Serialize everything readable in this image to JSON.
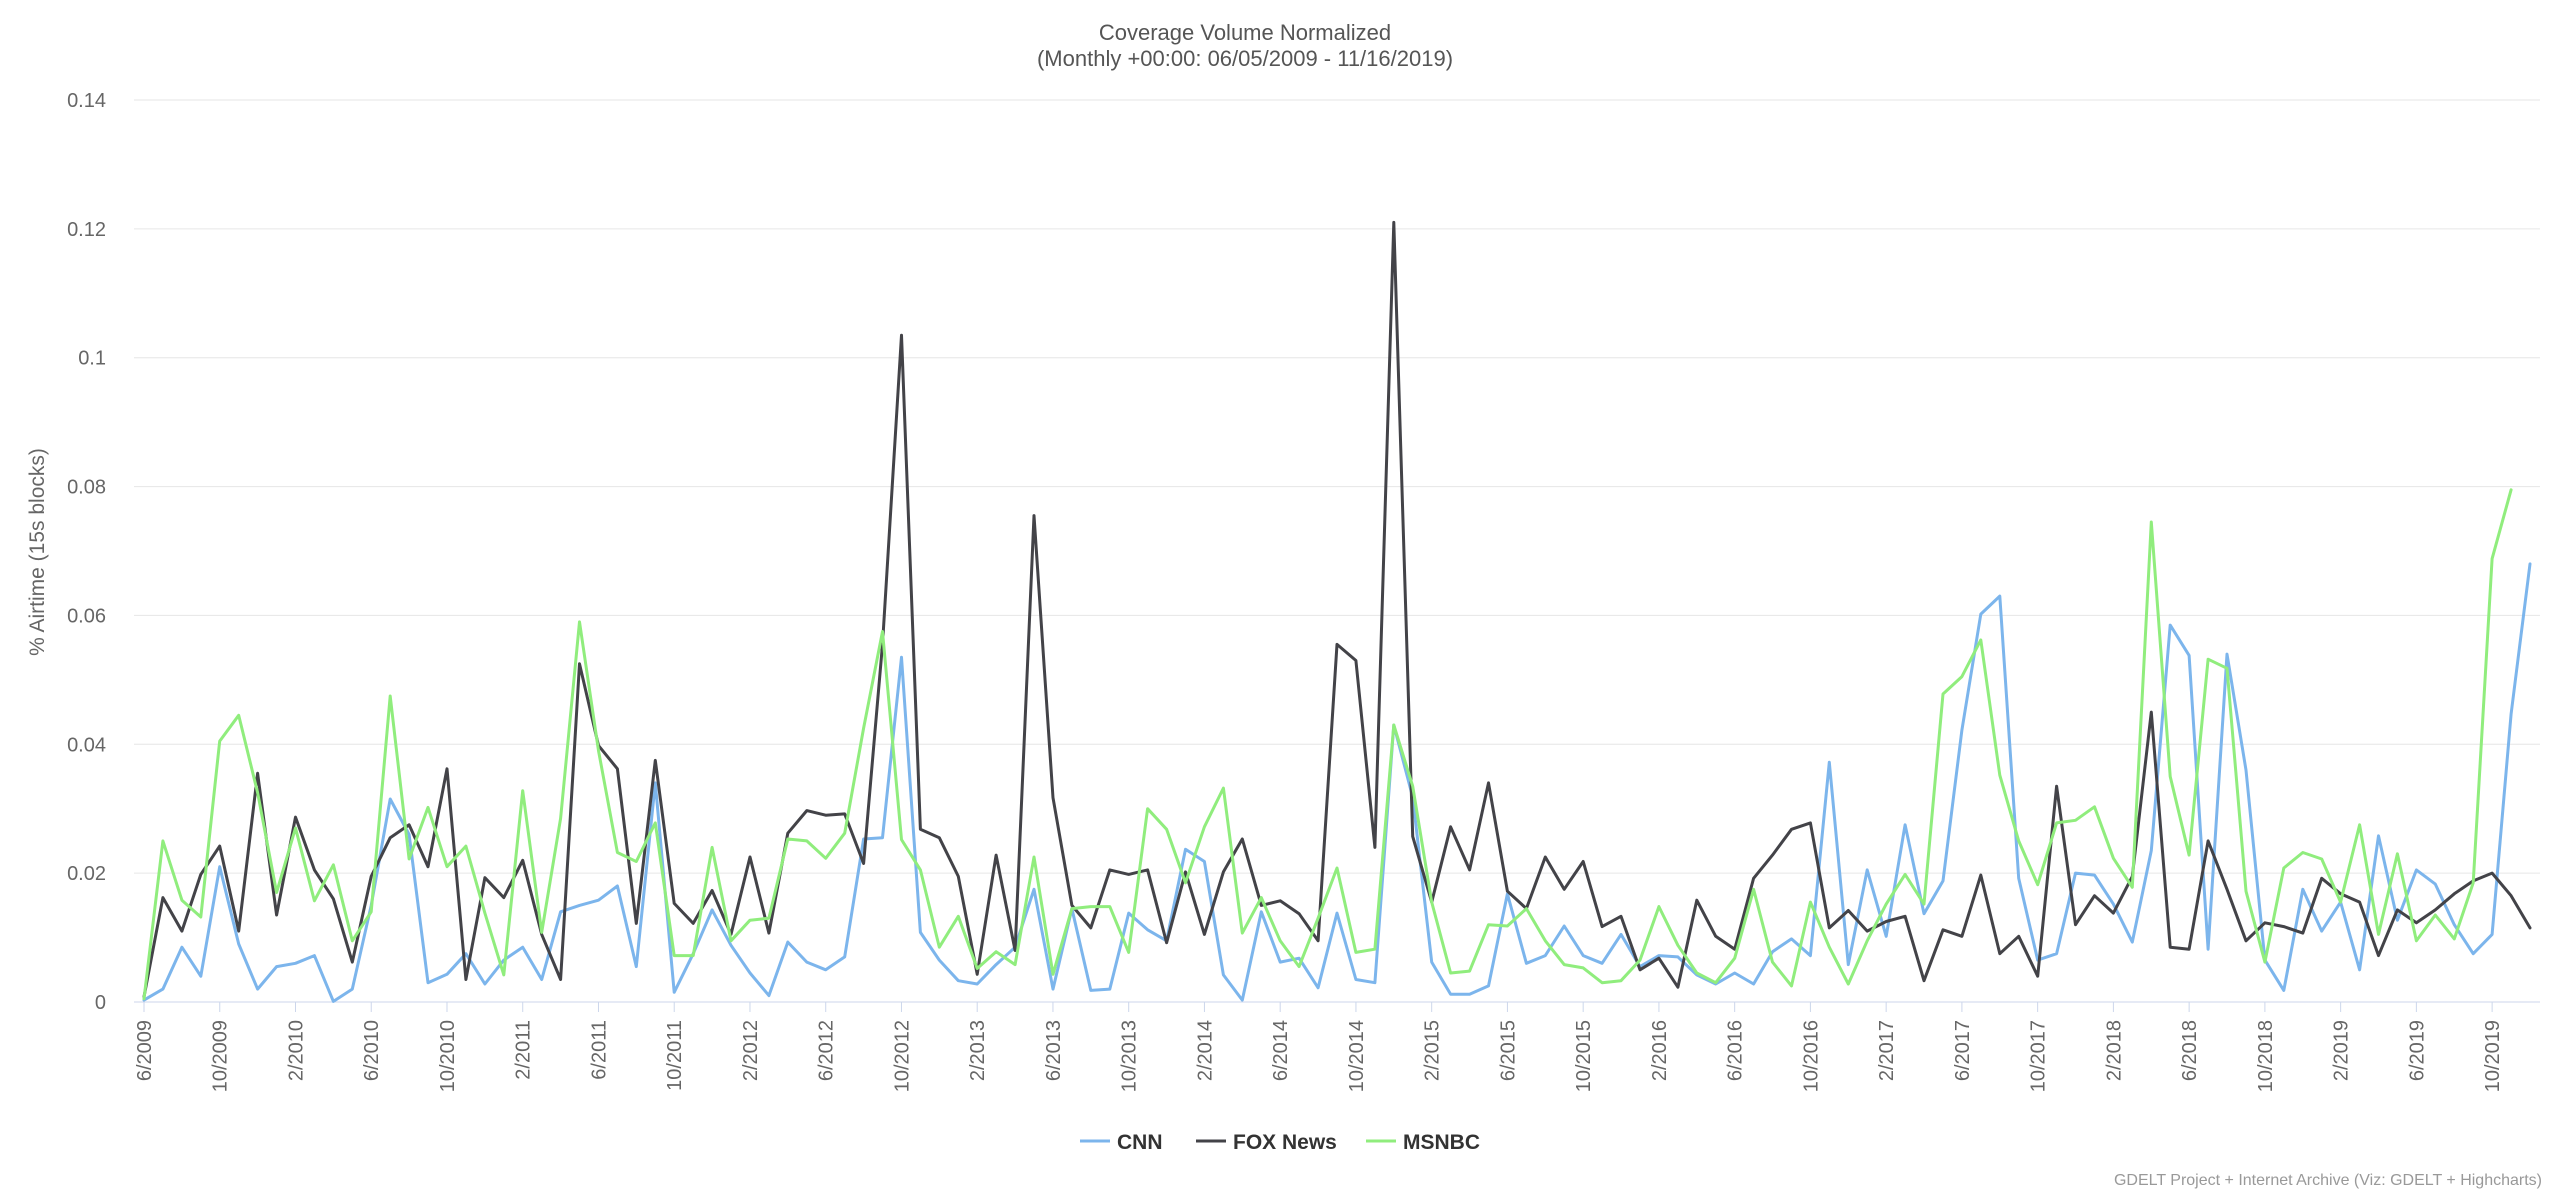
{
  "chart_data": {
    "type": "line",
    "title": "Coverage Volume Normalized",
    "subtitle": "(Monthly +00:00: 06/05/2009 - 11/16/2019)",
    "xlabel": "",
    "ylabel": "% Airtime (15s blocks)",
    "ylim": [
      0,
      0.14
    ],
    "yticks": [
      "0",
      "0.02",
      "0.04",
      "0.06",
      "0.08",
      "0.1",
      "0.12",
      "0.14"
    ],
    "grid": true,
    "legend_position": "bottom",
    "x_start": "6/2009",
    "x_end": "11/2019",
    "xtick_labels": [
      "6/2009",
      "10/2009",
      "2/2010",
      "6/2010",
      "10/2010",
      "2/2011",
      "6/2011",
      "10/2011",
      "2/2012",
      "6/2012",
      "10/2012",
      "2/2013",
      "6/2013",
      "10/2013",
      "2/2014",
      "6/2014",
      "10/2014",
      "2/2015",
      "6/2015",
      "10/2015",
      "2/2016",
      "6/2016",
      "10/2016",
      "2/2017",
      "6/2017",
      "10/2017",
      "2/2018",
      "6/2018",
      "10/2018",
      "2/2019",
      "6/2019",
      "10/2019"
    ],
    "series": [
      {
        "name": "CNN",
        "color": "#7cb5ec",
        "values": [
          0.0003,
          0.002,
          0.0085,
          0.004,
          0.021,
          0.009,
          0.002,
          0.0055,
          0.006,
          0.0072,
          0.0001,
          0.002,
          0.015,
          0.0315,
          0.026,
          0.003,
          0.0043,
          0.0075,
          0.0028,
          0.0065,
          0.0085,
          0.0035,
          0.014,
          0.015,
          0.0158,
          0.018,
          0.0055,
          0.034,
          0.0015,
          0.0075,
          0.0143,
          0.0088,
          0.0045,
          0.001,
          0.0093,
          0.0062,
          0.005,
          0.007,
          0.0253,
          0.0255,
          0.0535,
          0.0108,
          0.0065,
          0.0033,
          0.0028,
          0.0058,
          0.0085,
          0.0175,
          0.002,
          0.0145,
          0.0018,
          0.002,
          0.0138,
          0.0112,
          0.0095,
          0.0237,
          0.0218,
          0.0042,
          0.0003,
          0.014,
          0.0062,
          0.0068,
          0.0022,
          0.0138,
          0.0035,
          0.003,
          0.043,
          0.0318,
          0.0062,
          0.0012,
          0.0012,
          0.0025,
          0.0168,
          0.006,
          0.0072,
          0.0118,
          0.0072,
          0.006,
          0.0105,
          0.0055,
          0.0072,
          0.007,
          0.0042,
          0.0028,
          0.0045,
          0.0028,
          0.0078,
          0.0098,
          0.0072,
          0.0372,
          0.0058,
          0.0205,
          0.0102,
          0.0275,
          0.0137,
          0.0188,
          0.0422,
          0.0602,
          0.063,
          0.0192,
          0.0065,
          0.0075,
          0.02,
          0.0197,
          0.0152,
          0.0093,
          0.0235,
          0.0585,
          0.0538,
          0.0082,
          0.054,
          0.036,
          0.0065,
          0.0018,
          0.0175,
          0.011,
          0.0155,
          0.005,
          0.0258,
          0.0127,
          0.0205,
          0.0183,
          0.012,
          0.0075,
          0.0105,
          0.0447,
          0.068
        ]
      },
      {
        "name": "FOX News",
        "color": "#434348",
        "values": [
          0.0008,
          0.0162,
          0.011,
          0.0198,
          0.0242,
          0.011,
          0.0355,
          0.0135,
          0.0287,
          0.0205,
          0.016,
          0.0062,
          0.0195,
          0.0255,
          0.0275,
          0.021,
          0.0362,
          0.0035,
          0.0193,
          0.0162,
          0.022,
          0.0105,
          0.0035,
          0.0525,
          0.0398,
          0.0362,
          0.0122,
          0.0375,
          0.0153,
          0.0122,
          0.0173,
          0.0105,
          0.0225,
          0.0107,
          0.0262,
          0.0297,
          0.029,
          0.0292,
          0.0215,
          0.0555,
          0.1035,
          0.0268,
          0.0255,
          0.0195,
          0.0043,
          0.0228,
          0.008,
          0.0755,
          0.0317,
          0.015,
          0.0115,
          0.0205,
          0.0198,
          0.0205,
          0.0092,
          0.0202,
          0.0105,
          0.0202,
          0.0253,
          0.015,
          0.0157,
          0.0137,
          0.0095,
          0.0555,
          0.053,
          0.024,
          0.121,
          0.0257,
          0.0155,
          0.0272,
          0.0205,
          0.034,
          0.0172,
          0.0145,
          0.0225,
          0.0175,
          0.0218,
          0.0117,
          0.0133,
          0.005,
          0.0068,
          0.0023,
          0.0158,
          0.0102,
          0.0082,
          0.0192,
          0.0228,
          0.0268,
          0.0278,
          0.0115,
          0.0142,
          0.011,
          0.0125,
          0.0133,
          0.0033,
          0.0112,
          0.0102,
          0.0197,
          0.0075,
          0.0102,
          0.004,
          0.0335,
          0.012,
          0.0165,
          0.0138,
          0.0195,
          0.045,
          0.0085,
          0.0082,
          0.025,
          0.0175,
          0.0095,
          0.0123,
          0.0117,
          0.0107,
          0.0192,
          0.0168,
          0.0155,
          0.0072,
          0.0143,
          0.0123,
          0.0143,
          0.0168,
          0.0188,
          0.02,
          0.0165,
          0.0115
        ]
      },
      {
        "name": "MSNBC",
        "color": "#90ed7d",
        "values": [
          0.0005,
          0.025,
          0.0158,
          0.0132,
          0.0405,
          0.0445,
          0.0325,
          0.017,
          0.027,
          0.0157,
          0.0213,
          0.0095,
          0.014,
          0.0475,
          0.0222,
          0.0302,
          0.021,
          0.0242,
          0.0138,
          0.0042,
          0.0328,
          0.0108,
          0.0285,
          0.059,
          0.039,
          0.0232,
          0.0218,
          0.0278,
          0.0072,
          0.0072,
          0.024,
          0.0095,
          0.0127,
          0.013,
          0.0253,
          0.025,
          0.0223,
          0.0262,
          0.0425,
          0.0575,
          0.0252,
          0.0205,
          0.0085,
          0.0133,
          0.0052,
          0.0078,
          0.0058,
          0.0225,
          0.0043,
          0.0145,
          0.0148,
          0.0148,
          0.0077,
          0.03,
          0.0268,
          0.0185,
          0.0272,
          0.0332,
          0.0107,
          0.0162,
          0.0095,
          0.0055,
          0.013,
          0.0208,
          0.0077,
          0.0082,
          0.043,
          0.0335,
          0.0155,
          0.0045,
          0.0048,
          0.012,
          0.0118,
          0.0145,
          0.0095,
          0.0058,
          0.0053,
          0.003,
          0.0033,
          0.0065,
          0.0148,
          0.0088,
          0.0045,
          0.003,
          0.0068,
          0.0175,
          0.0062,
          0.0025,
          0.0155,
          0.0085,
          0.0028,
          0.0095,
          0.0152,
          0.0198,
          0.0152,
          0.0478,
          0.0505,
          0.0562,
          0.0352,
          0.025,
          0.0182,
          0.0278,
          0.0282,
          0.0303,
          0.0223,
          0.0178,
          0.0745,
          0.035,
          0.0228,
          0.0532,
          0.0518,
          0.0172,
          0.0062,
          0.0208,
          0.0232,
          0.0222,
          0.0155,
          0.0275,
          0.0105,
          0.023,
          0.0095,
          0.0135,
          0.0098,
          0.0185,
          0.0688,
          0.0795
        ]
      }
    ],
    "credit": "GDELT Project + Internet Archive (Viz: GDELT + Highcharts)"
  }
}
